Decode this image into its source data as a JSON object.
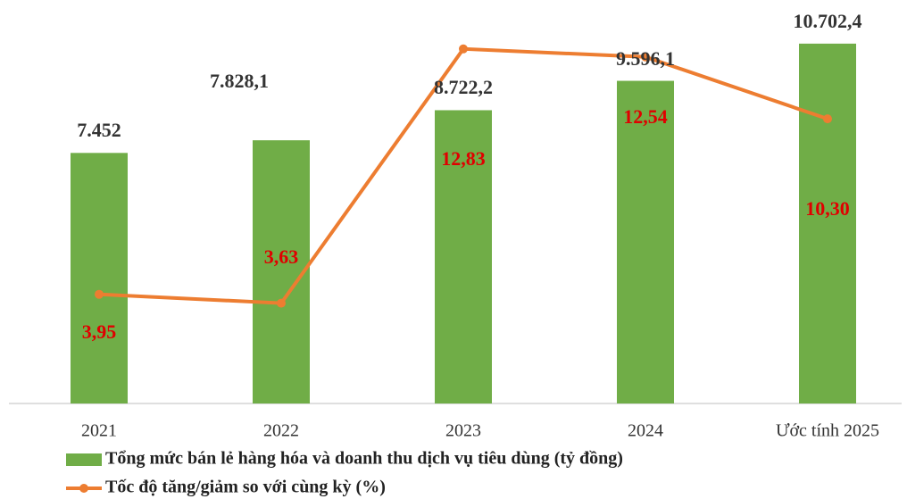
{
  "chart_data": {
    "type": "bar",
    "categories": [
      "2021",
      "2022",
      "2023",
      "2024",
      "Ước tính 2025"
    ],
    "series": [
      {
        "name": "Tổng mức bán lẻ hàng hóa và doanh thu dịch vụ tiêu dùng (tỷ đồng)",
        "type": "bar",
        "color": "#70ad47",
        "values": [
          7452,
          7828.1,
          8722.2,
          9596.1,
          10702.4
        ],
        "value_labels": [
          "7.452",
          "7.828,1",
          "8.722,2",
          "9.596,1",
          "10.702,4"
        ]
      },
      {
        "name": "Tốc độ tăng/giảm so với cùng kỳ (%)",
        "type": "line",
        "axis": "y2",
        "color": "#ed7d31",
        "values": [
          3.95,
          3.63,
          12.83,
          12.54,
          10.3
        ],
        "value_labels": [
          "3,95",
          "3,63",
          "12,83",
          "12,54",
          "10,30"
        ]
      }
    ],
    "ylim": [
      0,
      12000
    ],
    "y2lim": [
      0,
      14.6
    ],
    "legend": "bottom"
  }
}
